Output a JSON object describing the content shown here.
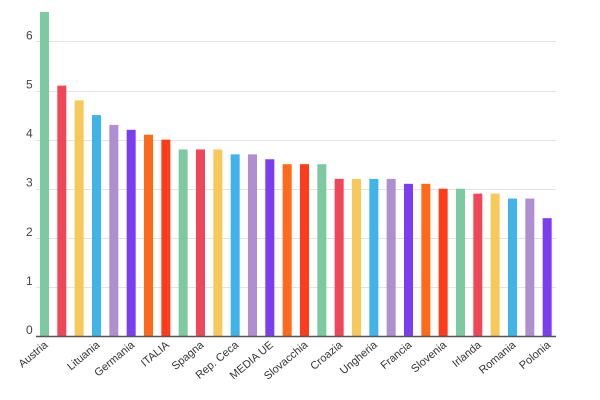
{
  "chart_data": {
    "type": "bar",
    "title": "",
    "xlabel": "",
    "ylabel": "",
    "ylim": [
      0,
      6.6
    ],
    "yticks": [
      0,
      1,
      2,
      3,
      4,
      5,
      6
    ],
    "grid": true,
    "legend": "none",
    "bars": [
      {
        "value": 6.6,
        "color": "#7cc9a2"
      },
      {
        "value": 5.1,
        "color": "#f0465a"
      },
      {
        "value": 4.8,
        "color": "#f7c95a"
      },
      {
        "value": 4.5,
        "color": "#3fb4ea"
      },
      {
        "value": 4.3,
        "color": "#b08fd0"
      },
      {
        "value": 4.2,
        "color": "#7a3ef0"
      },
      {
        "value": 4.1,
        "color": "#ff6a1a"
      },
      {
        "value": 4.0,
        "color": "#ff3b1a"
      },
      {
        "value": 3.8,
        "color": "#7cc9a2"
      },
      {
        "value": 3.8,
        "color": "#f0465a"
      },
      {
        "value": 3.8,
        "color": "#f7c95a"
      },
      {
        "value": 3.7,
        "color": "#3fb4ea"
      },
      {
        "value": 3.7,
        "color": "#b08fd0"
      },
      {
        "value": 3.6,
        "color": "#7a3ef0"
      },
      {
        "value": 3.5,
        "color": "#ff6a1a"
      },
      {
        "value": 3.5,
        "color": "#ff3b1a"
      },
      {
        "value": 3.5,
        "color": "#7cc9a2"
      },
      {
        "value": 3.2,
        "color": "#f0465a"
      },
      {
        "value": 3.2,
        "color": "#f7c95a"
      },
      {
        "value": 3.2,
        "color": "#3fb4ea"
      },
      {
        "value": 3.2,
        "color": "#b08fd0"
      },
      {
        "value": 3.1,
        "color": "#7a3ef0"
      },
      {
        "value": 3.1,
        "color": "#ff6a1a"
      },
      {
        "value": 3.0,
        "color": "#ff3b1a"
      },
      {
        "value": 3.0,
        "color": "#7cc9a2"
      },
      {
        "value": 2.9,
        "color": "#f0465a"
      },
      {
        "value": 2.9,
        "color": "#f7c95a"
      },
      {
        "value": 2.8,
        "color": "#3fb4ea"
      },
      {
        "value": 2.8,
        "color": "#b08fd0"
      },
      {
        "value": 2.4,
        "color": "#7a3ef0"
      }
    ],
    "xlabels": [
      {
        "text": "Austria",
        "bar": 0
      },
      {
        "text": "Lituania",
        "bar": 3
      },
      {
        "text": "Germania",
        "bar": 5
      },
      {
        "text": "ITALIA",
        "bar": 7
      },
      {
        "text": "Spagna",
        "bar": 9
      },
      {
        "text": "Rep. Ceca",
        "bar": 11
      },
      {
        "text": "MEDIA UE",
        "bar": 13
      },
      {
        "text": "Slovacchia",
        "bar": 15
      },
      {
        "text": "Croazia",
        "bar": 17
      },
      {
        "text": "Ungheria",
        "bar": 19
      },
      {
        "text": "Francia",
        "bar": 21
      },
      {
        "text": "Slovenia",
        "bar": 23
      },
      {
        "text": "Irlanda",
        "bar": 25
      },
      {
        "text": "Romania",
        "bar": 27
      },
      {
        "text": "Polonia",
        "bar": 29
      }
    ]
  }
}
